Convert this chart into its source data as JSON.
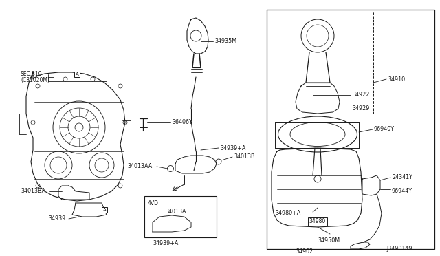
{
  "bg_color": "#ffffff",
  "fig_width": 6.4,
  "fig_height": 3.72,
  "line_color": "#1a1a1a",
  "text_color": "#1a1a1a",
  "font_size": 5.8,
  "labels": {
    "sec310": "SEC.310",
    "c31020m": "(C31020M)",
    "A": "A",
    "36406Y": "36406Y",
    "34935M": "34935M",
    "34939pA": "34939+A",
    "34013AA": "34013AA",
    "34013B": "34013B",
    "34013BA": "34013BA",
    "34939": "34939",
    "34013A": "34013A",
    "4VD": "4VD",
    "34939plus": "34939+A",
    "34910": "34910",
    "34922": "34922",
    "34929": "34929",
    "96940Y": "96940Y",
    "34902": "34902",
    "34950M": "34950M",
    "34980": "34980",
    "34980pA": "34980+A",
    "24341Y": "24341Y",
    "96944Y": "96944Y",
    "J3490149": "J3490149"
  }
}
